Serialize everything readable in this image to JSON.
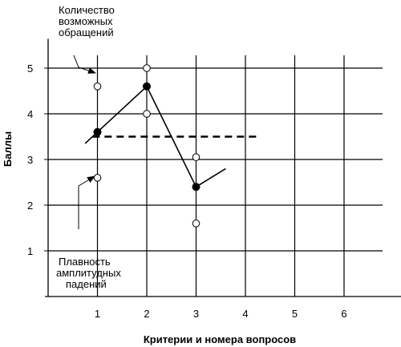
{
  "chart_data": {
    "type": "line",
    "xlabel": "Критерии и номера вопросов",
    "ylabel": "Баллы",
    "x_ticks": [
      1,
      2,
      3,
      4,
      5,
      6
    ],
    "y_ticks": [
      1,
      2,
      3,
      4,
      5
    ],
    "xlim": [
      0,
      6.7
    ],
    "ylim": [
      0,
      5.5
    ],
    "grid": true,
    "series": [
      {
        "style": "solid-line-filled-markers",
        "x": [
          1,
          2,
          3
        ],
        "y": [
          3.6,
          4.6,
          2.4
        ]
      },
      {
        "style": "open-markers",
        "x": [
          1,
          1,
          2,
          2,
          3,
          3
        ],
        "y": [
          4.6,
          2.6,
          5.0,
          4.0,
          3.05,
          1.6
        ]
      }
    ],
    "threshold": {
      "style": "dashed",
      "y": 3.5,
      "x_range": [
        0.9,
        4.25
      ]
    },
    "annotations": [
      {
        "text": [
          "Количество",
          "возможных",
          "обращений"
        ],
        "points_to": "open markers above the line"
      },
      {
        "text": [
          "Плавность",
          "амплитудных",
          "падений"
        ],
        "points_to": "open markers below the line"
      }
    ]
  }
}
